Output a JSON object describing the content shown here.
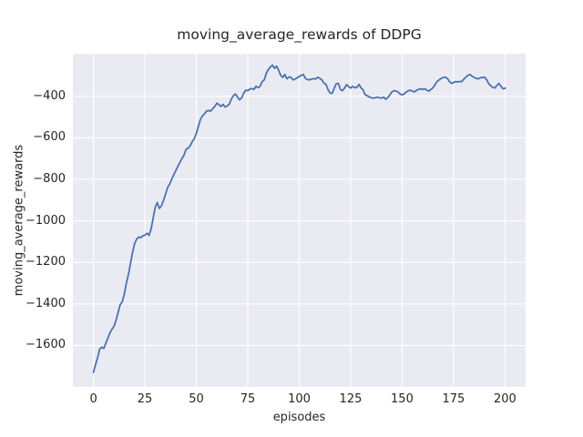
{
  "figure": {
    "title": "moving_average_rewards of DDPG",
    "xlabel": "episodes",
    "ylabel": "moving_average_rewards",
    "colors": {
      "figure_background": "#ffffff",
      "axes_background": "#eaeaf2",
      "grid": "#ffffff",
      "line": "#4c72b0",
      "text": "#262626"
    }
  },
  "chart_data": {
    "type": "line",
    "title": "moving_average_rewards of DDPG",
    "xlabel": "episodes",
    "ylabel": "moving_average_rewards",
    "legend": null,
    "grid": true,
    "xlim": [
      -10,
      210
    ],
    "ylim": [
      -1800,
      -195
    ],
    "xticks": [
      0,
      25,
      50,
      75,
      100,
      125,
      150,
      175,
      200
    ],
    "yticks": [
      -400,
      -600,
      -800,
      -1000,
      -1200,
      -1400,
      -1600
    ],
    "series_name": "moving_average_rewards",
    "x": [
      0,
      1,
      2,
      3,
      4,
      5,
      6,
      7,
      8,
      9,
      10,
      11,
      12,
      13,
      14,
      15,
      16,
      17,
      18,
      19,
      20,
      21,
      22,
      23,
      24,
      25,
      26,
      27,
      28,
      29,
      30,
      31,
      32,
      33,
      34,
      35,
      36,
      37,
      38,
      39,
      40,
      41,
      42,
      43,
      44,
      45,
      46,
      47,
      48,
      49,
      50,
      51,
      52,
      53,
      54,
      55,
      56,
      57,
      58,
      59,
      60,
      61,
      62,
      63,
      64,
      65,
      66,
      67,
      68,
      69,
      70,
      71,
      72,
      73,
      74,
      75,
      76,
      77,
      78,
      79,
      80,
      81,
      82,
      83,
      84,
      85,
      86,
      87,
      88,
      89,
      90,
      91,
      92,
      93,
      94,
      95,
      96,
      97,
      98,
      99,
      100,
      101,
      102,
      103,
      104,
      105,
      106,
      107,
      108,
      109,
      110,
      111,
      112,
      113,
      114,
      115,
      116,
      117,
      118,
      119,
      120,
      121,
      122,
      123,
      124,
      125,
      126,
      127,
      128,
      129,
      130,
      131,
      132,
      133,
      134,
      135,
      136,
      137,
      138,
      139,
      140,
      141,
      142,
      143,
      144,
      145,
      146,
      147,
      148,
      149,
      150,
      151,
      152,
      153,
      154,
      155,
      156,
      157,
      158,
      159,
      160,
      161,
      162,
      163,
      164,
      165,
      166,
      167,
      168,
      169,
      170,
      171,
      172,
      173,
      174,
      175,
      176,
      177,
      178,
      179,
      180,
      181,
      182,
      183,
      184,
      185,
      186,
      187,
      188,
      189,
      190,
      191,
      192,
      193,
      194,
      195,
      196,
      197,
      198,
      199,
      200
    ],
    "y": [
      -1730,
      -1693,
      -1660,
      -1618,
      -1608,
      -1615,
      -1590,
      -1565,
      -1540,
      -1522,
      -1508,
      -1478,
      -1441,
      -1403,
      -1390,
      -1352,
      -1300,
      -1258,
      -1205,
      -1152,
      -1110,
      -1088,
      -1078,
      -1081,
      -1072,
      -1069,
      -1060,
      -1070,
      -1040,
      -988,
      -935,
      -912,
      -940,
      -928,
      -903,
      -873,
      -840,
      -824,
      -800,
      -779,
      -758,
      -738,
      -719,
      -700,
      -684,
      -655,
      -650,
      -638,
      -619,
      -604,
      -578,
      -545,
      -511,
      -494,
      -484,
      -471,
      -469,
      -471,
      -459,
      -449,
      -433,
      -441,
      -449,
      -439,
      -452,
      -446,
      -438,
      -414,
      -397,
      -389,
      -404,
      -417,
      -408,
      -385,
      -371,
      -373,
      -365,
      -363,
      -367,
      -352,
      -359,
      -351,
      -329,
      -321,
      -289,
      -271,
      -259,
      -250,
      -265,
      -255,
      -275,
      -299,
      -309,
      -295,
      -316,
      -307,
      -309,
      -321,
      -317,
      -311,
      -305,
      -299,
      -295,
      -314,
      -319,
      -321,
      -317,
      -315,
      -317,
      -308,
      -314,
      -321,
      -337,
      -342,
      -369,
      -384,
      -386,
      -361,
      -339,
      -338,
      -367,
      -373,
      -361,
      -344,
      -354,
      -360,
      -352,
      -359,
      -357,
      -343,
      -359,
      -369,
      -392,
      -397,
      -403,
      -407,
      -409,
      -407,
      -404,
      -407,
      -409,
      -404,
      -414,
      -407,
      -394,
      -379,
      -373,
      -375,
      -379,
      -389,
      -393,
      -389,
      -379,
      -373,
      -371,
      -375,
      -379,
      -371,
      -367,
      -364,
      -367,
      -364,
      -371,
      -375,
      -367,
      -359,
      -344,
      -329,
      -321,
      -314,
      -309,
      -308,
      -314,
      -329,
      -338,
      -334,
      -329,
      -331,
      -329,
      -329,
      -317,
      -308,
      -299,
      -295,
      -304,
      -309,
      -314,
      -316,
      -311,
      -309,
      -308,
      -319,
      -338,
      -349,
      -357,
      -360,
      -349,
      -338,
      -351,
      -364,
      -361
    ]
  }
}
